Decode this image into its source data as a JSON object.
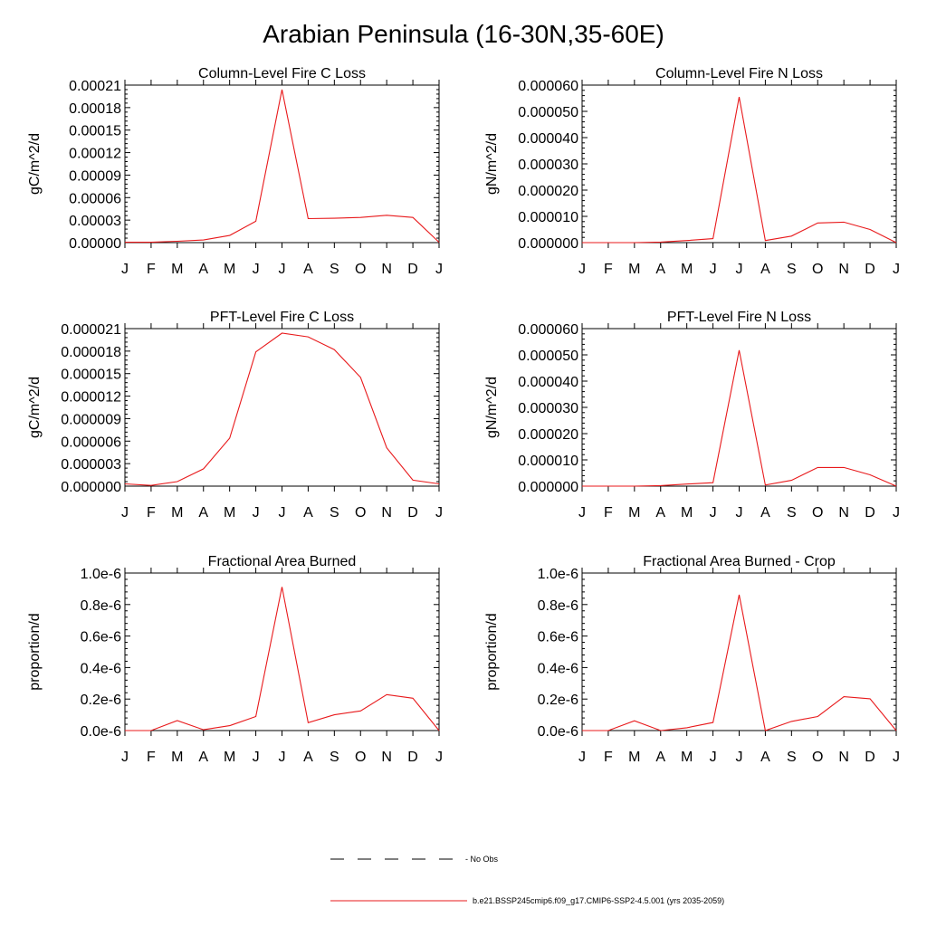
{
  "title": "Arabian Peninsula (16-30N,35-60E)",
  "colors": {
    "model_line": "#e8191b",
    "obs_line": "#000000",
    "axis": "#000000"
  },
  "legend": [
    {
      "label": "- No Obs",
      "style": "dashed",
      "color": "#000000"
    },
    {
      "label": "b.e21.BSSP245cmip6.f09_g17.CMIP6-SSP2-4.5.001 (yrs 2035-2059)",
      "style": "solid",
      "color": "#e8191b"
    }
  ],
  "chart_data": [
    {
      "type": "line",
      "title": "Column-Level Fire C Loss",
      "ylabel": "gC/m^2/d",
      "categories": [
        "J",
        "F",
        "M",
        "A",
        "M",
        "J",
        "J",
        "A",
        "S",
        "O",
        "N",
        "D",
        "J"
      ],
      "yticks": [
        "0.00000",
        "0.00003",
        "0.00006",
        "0.00009",
        "0.00012",
        "0.00015",
        "0.00018",
        "0.00021"
      ],
      "ylim": [
        0,
        0.00021
      ],
      "series": [
        {
          "values": [
            5e-07,
            5e-07,
            1.8e-06,
            3.5e-06,
            9.5e-06,
            2.85e-05,
            0.000204,
            3.2e-05,
            3.25e-05,
            3.35e-05,
            3.65e-05,
            3.35e-05,
            5e-07
          ]
        }
      ]
    },
    {
      "type": "line",
      "title": "Column-Level Fire N Loss",
      "ylabel": "gN/m^2/d",
      "categories": [
        "J",
        "F",
        "M",
        "A",
        "M",
        "J",
        "J",
        "A",
        "S",
        "O",
        "N",
        "D",
        "J"
      ],
      "yticks": [
        "0.000000",
        "0.000010",
        "0.000020",
        "0.000030",
        "0.000040",
        "0.000050",
        "0.000060"
      ],
      "ylim": [
        0,
        6e-05
      ],
      "series": [
        {
          "values": [
            0.0,
            0.0,
            0.0,
            2e-07,
            8e-07,
            1.5e-06,
            5.55e-05,
            8e-07,
            2.5e-06,
            7.5e-06,
            7.8e-06,
            5e-06,
            0.0
          ]
        }
      ]
    },
    {
      "type": "line",
      "title": "PFT-Level Fire C Loss",
      "ylabel": "gC/m^2/d",
      "categories": [
        "J",
        "F",
        "M",
        "A",
        "M",
        "J",
        "J",
        "A",
        "S",
        "O",
        "N",
        "D",
        "J"
      ],
      "yticks": [
        "0.000000",
        "0.000003",
        "0.000006",
        "0.000009",
        "0.000012",
        "0.000015",
        "0.000018",
        "0.000021"
      ],
      "ylim": [
        0,
        2.1e-05
      ],
      "series": [
        {
          "values": [
            3e-07,
            1e-07,
            6e-07,
            2.3e-06,
            6.4e-06,
            1.79e-05,
            2.04e-05,
            1.99e-05,
            1.82e-05,
            1.45e-05,
            5.1e-06,
            8e-07,
            3e-07
          ]
        }
      ]
    },
    {
      "type": "line",
      "title": "PFT-Level Fire N Loss",
      "ylabel": "gN/m^2/d",
      "categories": [
        "J",
        "F",
        "M",
        "A",
        "M",
        "J",
        "J",
        "A",
        "S",
        "O",
        "N",
        "D",
        "J"
      ],
      "yticks": [
        "0.000000",
        "0.000010",
        "0.000020",
        "0.000030",
        "0.000040",
        "0.000050",
        "0.000060"
      ],
      "ylim": [
        0,
        6e-05
      ],
      "series": [
        {
          "values": [
            0.0,
            0.0,
            0.0,
            2e-07,
            8e-07,
            1.3e-06,
            5.18e-05,
            4e-07,
            2.2e-06,
            7.1e-06,
            7.1e-06,
            4.3e-06,
            0.0
          ]
        }
      ]
    },
    {
      "type": "line",
      "title": "Fractional Area Burned",
      "ylabel": "proportion/d",
      "categories": [
        "J",
        "F",
        "M",
        "A",
        "M",
        "J",
        "J",
        "A",
        "S",
        "O",
        "N",
        "D",
        "J"
      ],
      "yticks": [
        "0.0e-6",
        "0.2e-6",
        "0.4e-6",
        "0.6e-6",
        "0.8e-6",
        "1.0e-6"
      ],
      "ylim": [
        0,
        1e-06
      ],
      "series": [
        {
          "values": [
            0.0,
            0.0,
            6.3e-08,
            5e-09,
            3.1e-08,
            8.9e-08,
            9.12e-07,
            5e-08,
            1e-07,
            1.25e-07,
            2.28e-07,
            2.05e-07,
            0.0
          ]
        }
      ]
    },
    {
      "type": "line",
      "title": "Fractional Area Burned - Crop",
      "ylabel": "proportion/d",
      "categories": [
        "J",
        "F",
        "M",
        "A",
        "M",
        "J",
        "J",
        "A",
        "S",
        "O",
        "N",
        "D",
        "J"
      ],
      "yticks": [
        "0.0e-6",
        "0.2e-6",
        "0.4e-6",
        "0.6e-6",
        "0.8e-6",
        "1.0e-6"
      ],
      "ylim": [
        0,
        1e-06
      ],
      "series": [
        {
          "values": [
            0.0,
            0.0,
            6.2e-08,
            0.0,
            1.8e-08,
            5.1e-08,
            8.62e-07,
            0.0,
            5.8e-08,
            8.9e-08,
            2.15e-07,
            2.02e-07,
            0.0
          ]
        }
      ]
    }
  ]
}
